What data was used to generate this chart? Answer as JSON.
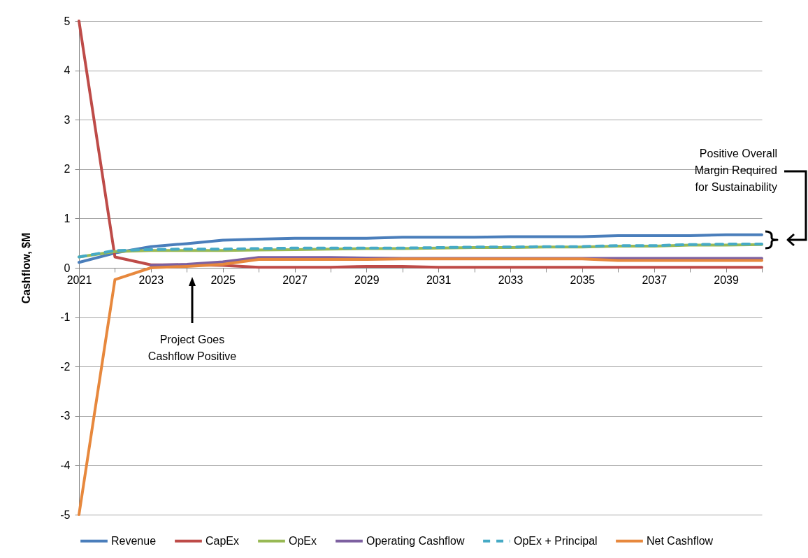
{
  "chart_data": {
    "type": "line",
    "x": [
      2021,
      2022,
      2023,
      2024,
      2025,
      2026,
      2027,
      2028,
      2029,
      2030,
      2031,
      2032,
      2033,
      2034,
      2035,
      2036,
      2037,
      2038,
      2039,
      2040
    ],
    "xlim": [
      2021,
      2040
    ],
    "xticks": [
      2021,
      {
        "value": 2022,
        "label": null
      },
      2023,
      {
        "value": 2024,
        "label": null
      },
      2025,
      {
        "value": 2026,
        "label": null
      },
      2027,
      {
        "value": 2028,
        "label": null
      },
      2029,
      {
        "value": 2030,
        "label": null
      },
      2031,
      {
        "value": 2032,
        "label": null
      },
      2033,
      {
        "value": 2034,
        "label": null
      },
      2035,
      {
        "value": 2036,
        "label": null
      },
      2037,
      {
        "value": 2038,
        "label": null
      },
      2039,
      {
        "value": 2040,
        "label": null
      }
    ],
    "ylim": [
      -5,
      5
    ],
    "yticks": [
      -5,
      -4,
      -3,
      -2,
      -1,
      0,
      1,
      2,
      3,
      4,
      5
    ],
    "ylabel": "Cashflow, $M",
    "grid": "y",
    "legend": "bottom",
    "line_style": "solid",
    "series": [
      {
        "name": "Revenue",
        "color": "#4a7ebb",
        "values": [
          0.11,
          0.3,
          0.43,
          0.49,
          0.56,
          0.58,
          0.6,
          0.6,
          0.6,
          0.62,
          0.62,
          0.62,
          0.63,
          0.63,
          0.63,
          0.65,
          0.65,
          0.65,
          0.67,
          0.67
        ]
      },
      {
        "name": "CapEx",
        "color": "#be4b48",
        "values": [
          5,
          0.22,
          0.06,
          0.06,
          0.05,
          0.01,
          0.01,
          0.01,
          0.03,
          0.03,
          0.01,
          0.01,
          0.01,
          0.01,
          0.01,
          0.01,
          0.01,
          0.01,
          0.01,
          0.01
        ]
      },
      {
        "name": "OpEx",
        "color": "#98b954",
        "values": [
          0.22,
          0.33,
          0.35,
          0.35,
          0.35,
          0.36,
          0.37,
          0.38,
          0.39,
          0.39,
          0.4,
          0.41,
          0.41,
          0.42,
          0.42,
          0.44,
          0.44,
          0.46,
          0.46,
          0.47
        ]
      },
      {
        "name": "Operating Cashflow",
        "color": "#7d60a0",
        "values": [
          null,
          null,
          0.05,
          0.07,
          0.12,
          0.21,
          0.21,
          0.21,
          0.2,
          0.19,
          0.19,
          0.19,
          0.19,
          0.19,
          0.19,
          0.19,
          0.19,
          0.19,
          0.19,
          0.19
        ]
      },
      {
        "name": "OpEx + Principal",
        "color": "#46aac5",
        "line_style": "dashed",
        "values": [
          0.22,
          0.35,
          0.37,
          0.38,
          0.38,
          0.39,
          0.4,
          0.4,
          0.4,
          0.4,
          0.41,
          0.42,
          0.42,
          0.43,
          0.43,
          0.45,
          0.45,
          0.47,
          0.48,
          0.48
        ]
      },
      {
        "name": "Net Cashflow",
        "color": "#e7883d",
        "values": [
          -5,
          -0.24,
          0.0,
          0.03,
          0.07,
          0.17,
          0.17,
          0.17,
          0.17,
          0.18,
          0.18,
          0.18,
          0.18,
          0.18,
          0.18,
          0.15,
          0.15,
          0.15,
          0.15,
          0.15
        ]
      }
    ],
    "annotations": [
      "Project Goes\nCashflow Positive",
      "Positive Overall\nMargin Required\nfor  Sustainability"
    ]
  }
}
